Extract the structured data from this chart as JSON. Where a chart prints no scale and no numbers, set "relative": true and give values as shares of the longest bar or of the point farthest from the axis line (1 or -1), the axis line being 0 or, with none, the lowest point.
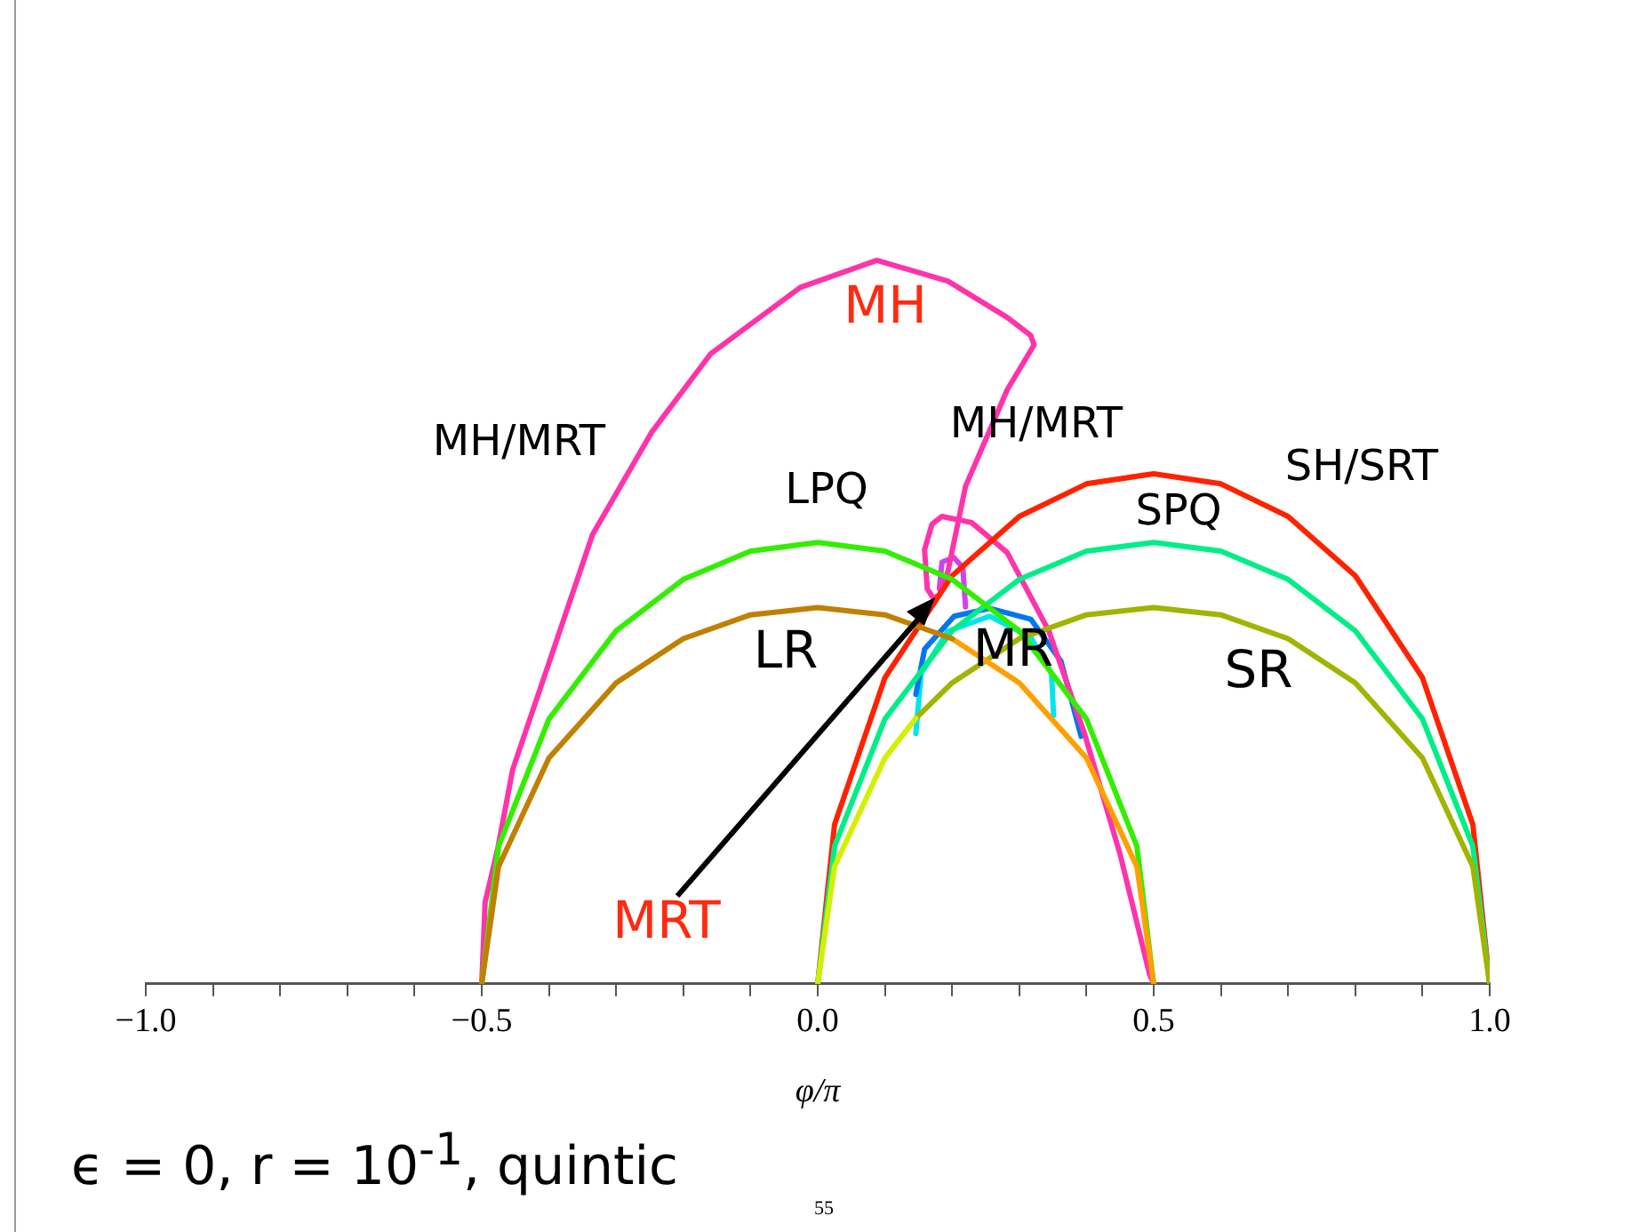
{
  "chart_data": {
    "type": "line",
    "relative": true,
    "xlabel": "φ/π",
    "xlim": [
      -1,
      1
    ],
    "xticks": [
      {
        "value": -1,
        "label": "−1.0"
      },
      {
        "value": -0.9,
        "label": null
      },
      {
        "value": -0.8,
        "label": null
      },
      {
        "value": -0.7,
        "label": null
      },
      {
        "value": -0.6,
        "label": null
      },
      {
        "value": -0.5,
        "label": "−0.5"
      },
      {
        "value": -0.4,
        "label": null
      },
      {
        "value": -0.3,
        "label": null
      },
      {
        "value": -0.2,
        "label": null
      },
      {
        "value": -0.1,
        "label": null
      },
      {
        "value": 0,
        "label": "0.0"
      },
      {
        "value": 0.1,
        "label": null
      },
      {
        "value": 0.2,
        "label": null
      },
      {
        "value": 0.3,
        "label": null
      },
      {
        "value": 0.4,
        "label": null
      },
      {
        "value": 0.5,
        "label": "0.5"
      },
      {
        "value": 0.6,
        "label": null
      },
      {
        "value": 0.7,
        "label": null
      },
      {
        "value": 0.8,
        "label": null
      },
      {
        "value": 0.9,
        "label": null
      },
      {
        "value": 1,
        "label": "1.0"
      }
    ],
    "grid": false,
    "legend": false,
    "marker": "none",
    "line_style": "solid",
    "series": [
      {
        "color": "#c08000",
        "x": [
          -0.5,
          -0.475,
          -0.4,
          -0.3,
          -0.2,
          -0.1,
          0,
          0.1,
          0.2
        ],
        "values": [
          0,
          0.162,
          0.312,
          0.416,
          0.477,
          0.51,
          0.52,
          0.51,
          0.477
        ]
      },
      {
        "color": "#ffa000",
        "x": [
          0.2,
          0.3,
          0.4,
          0.475,
          0.5
        ],
        "values": [
          0.477,
          0.416,
          0.312,
          0.162,
          0
        ]
      },
      {
        "color": "#33ee00",
        "x": [
          -0.5,
          -0.475,
          -0.4,
          -0.3,
          -0.2,
          -0.1,
          0,
          0.1,
          0.2,
          0.3,
          0.4,
          0.475,
          0.5
        ],
        "values": [
          0,
          0.19,
          0.366,
          0.488,
          0.559,
          0.598,
          0.61,
          0.598,
          0.559,
          0.488,
          0.366,
          0.19,
          0
        ]
      },
      {
        "color": "#d4f000",
        "x": [
          0,
          0.025,
          0.1,
          0.146
        ],
        "values": [
          0,
          0.162,
          0.312,
          0.367
        ]
      },
      {
        "color": "#a0b400",
        "x": [
          0.146,
          0.2,
          0.3,
          0.4,
          0.5,
          0.6,
          0.7,
          0.8,
          0.9,
          0.975,
          1
        ],
        "values": [
          0.367,
          0.416,
          0.477,
          0.51,
          0.52,
          0.51,
          0.477,
          0.416,
          0.312,
          0.162,
          0
        ]
      },
      {
        "color": "#00ee88",
        "x": [
          0,
          0.025,
          0.1,
          0.2,
          0.3,
          0.4,
          0.5,
          0.6,
          0.7,
          0.8,
          0.9,
          0.975,
          1
        ],
        "values": [
          0,
          0.19,
          0.366,
          0.488,
          0.559,
          0.598,
          0.61,
          0.598,
          0.559,
          0.488,
          0.366,
          0.19,
          0
        ]
      },
      {
        "color": "#ff2200",
        "x": [
          0,
          0.025,
          0.1,
          0.2,
          0.3,
          0.4,
          0.5,
          0.6,
          0.7,
          0.8,
          0.9,
          0.975,
          1
        ],
        "values": [
          0,
          0.22,
          0.423,
          0.564,
          0.646,
          0.691,
          0.705,
          0.691,
          0.646,
          0.564,
          0.423,
          0.22,
          0
        ]
      },
      {
        "color": "#ff33aa",
        "x": [
          -0.5,
          -0.495,
          -0.476,
          -0.454,
          -0.335,
          -0.247,
          -0.159,
          -0.026,
          0.088,
          0.194,
          0.282,
          0.317,
          0.322,
          0.282,
          0.22,
          0.194,
          0.181,
          0.172
        ],
        "values": [
          0,
          0.1125,
          0.1875,
          0.296,
          0.621,
          0.7625,
          0.871,
          0.9625,
          1,
          0.971,
          0.921,
          0.896,
          0.883,
          0.821,
          0.6875,
          0.571,
          0.5375,
          0.533
        ]
      },
      {
        "color": "#ff33aa",
        "x": [
          0.172,
          0.163,
          0.159,
          0.17,
          0.185,
          0.229,
          0.282,
          0.344,
          0.397,
          0.45,
          0.494,
          0.5
        ],
        "values": [
          0.533,
          0.546,
          0.6,
          0.635,
          0.646,
          0.6375,
          0.596,
          0.4875,
          0.346,
          0.179,
          0.0125,
          0
        ]
      },
      {
        "color": "#cc44ee",
        "x": [
          0.181,
          0.185,
          0.203,
          0.216,
          0.22
        ],
        "values": [
          0.546,
          0.583,
          0.589,
          0.575,
          0.521
        ]
      },
      {
        "color": "#0077ee",
        "x": [
          0.146,
          0.159,
          0.203,
          0.256,
          0.317,
          0.362,
          0.392
        ],
        "values": [
          0.4,
          0.4625,
          0.508,
          0.519,
          0.504,
          0.446,
          0.342
        ]
      },
      {
        "color": "#00e5ee",
        "x": [
          0.146,
          0.154,
          0.194,
          0.256,
          0.317,
          0.348,
          0.351
        ],
        "values": [
          0.346,
          0.429,
          0.4875,
          0.508,
          0.479,
          0.429,
          0.371
        ]
      }
    ],
    "annotations": [
      "MH",
      "MH/MRT",
      "MH/MRT",
      "LPQ",
      "LR",
      "MR",
      "SPQ",
      "SH/SRT",
      "SR",
      "MRT",
      "ϵ = 0,  r = 10$^{-1}$, quintic",
      "55"
    ]
  }
}
